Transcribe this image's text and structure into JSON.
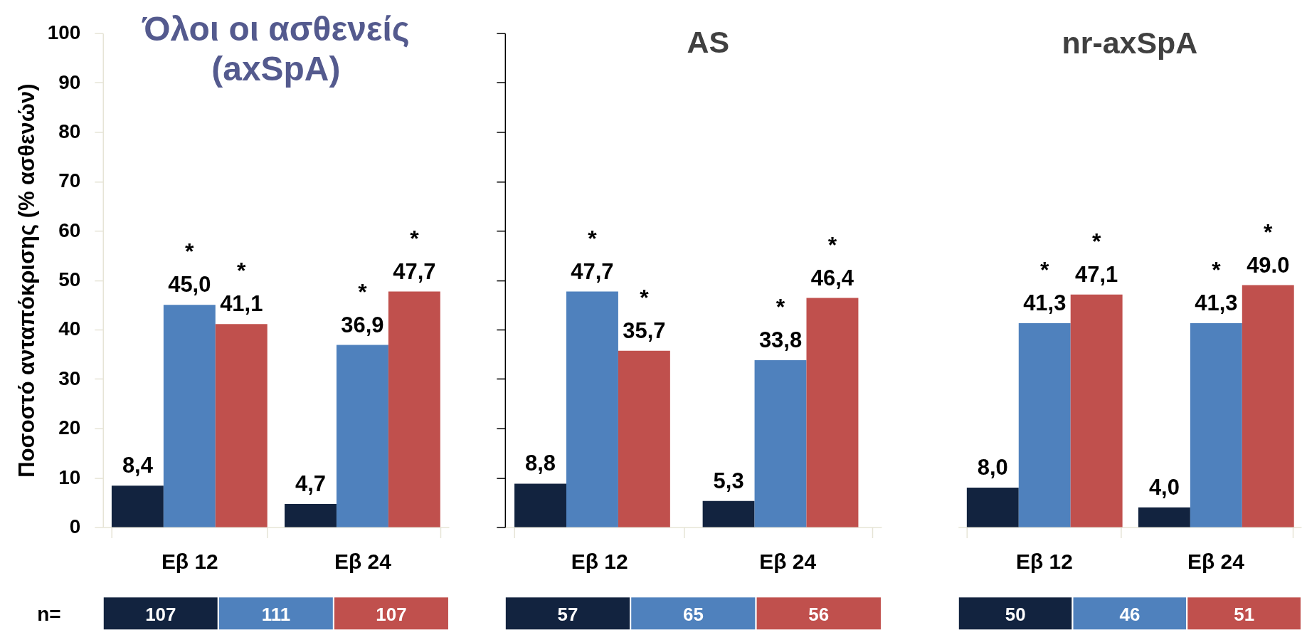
{
  "chart_data": [
    {
      "type": "bar",
      "title": "Όλοι οι ασθενείς (axSpA)",
      "ylabel": "Ποσοστό ανταπόκρισης (% ασθενών)",
      "categories": [
        "Εβ 12",
        "Εβ 24"
      ],
      "series": [
        {
          "color": "#12233f",
          "values": [
            8.4,
            4.7
          ],
          "value_labels": [
            "8,4",
            "4,7"
          ]
        },
        {
          "color": "#4f81bd",
          "values": [
            45.0,
            36.9
          ],
          "value_labels": [
            "45,0",
            "36,9"
          ]
        },
        {
          "color": "#c0504d",
          "values": [
            41.1,
            47.7
          ],
          "value_labels": [
            "41,1",
            "47,7"
          ]
        }
      ],
      "ylim": [
        0,
        100
      ],
      "yticks": [
        0,
        10,
        20,
        30,
        40,
        50,
        60,
        70,
        80,
        90,
        100
      ],
      "annotations": [
        "n=",
        "107",
        "111",
        "107",
        {
          "text": "*",
          "x": "Εβ 12",
          "y": 45.0
        },
        "*",
        {
          "text": "*",
          "x": "Εβ 24",
          "y": 36.9
        },
        "*"
      ]
    },
    {
      "type": "bar",
      "title": "AS",
      "categories": [
        "Εβ 12",
        "Εβ 24"
      ],
      "series": [
        {
          "color": "#12233f",
          "values": [
            8.8,
            5.3
          ],
          "value_labels": [
            "8,8",
            "5,3"
          ]
        },
        {
          "color": "#4f81bd",
          "values": [
            47.7,
            33.8
          ],
          "value_labels": [
            "47,7",
            "33,8"
          ]
        },
        {
          "color": "#c0504d",
          "values": [
            35.7,
            46.4
          ],
          "value_labels": [
            "35,7",
            "46,4"
          ]
        }
      ],
      "ylim": [
        0,
        100
      ],
      "yticks": [
        {
          "value": 0,
          "label": null
        },
        {
          "value": 10,
          "label": null
        },
        {
          "value": 20,
          "label": null
        },
        {
          "value": 30,
          "label": null
        },
        {
          "value": 40,
          "label": null
        },
        {
          "value": 50,
          "label": null
        },
        {
          "value": 60,
          "label": null
        },
        {
          "value": 70,
          "label": null
        },
        {
          "value": 80,
          "label": null
        },
        {
          "value": 90,
          "label": null
        },
        {
          "value": 100,
          "label": null
        }
      ],
      "tick_labels": "x",
      "annotations": [
        "57",
        "65",
        "56",
        {
          "text": "*",
          "x": "Εβ 12",
          "y": 47.7
        },
        "*",
        {
          "text": "*",
          "x": "Εβ 24",
          "y": 33.8
        },
        "*"
      ]
    },
    {
      "type": "bar",
      "title": "nr-axSpA",
      "categories": [
        "Εβ 12",
        "Εβ 24"
      ],
      "series": [
        {
          "color": "#12233f",
          "values": [
            8.0,
            4.0
          ],
          "value_labels": [
            "8,0",
            "4,0"
          ]
        },
        {
          "color": "#4f81bd",
          "values": [
            41.3,
            41.3
          ],
          "value_labels": [
            "41,3",
            "41,3"
          ]
        },
        {
          "color": "#c0504d",
          "values": [
            47.1,
            49.0
          ],
          "value_labels": [
            "47,1",
            "49.0"
          ]
        }
      ],
      "ylim": [
        0,
        100
      ],
      "tick_labels": "x",
      "annotations": [
        "50",
        "46",
        "51",
        {
          "text": "*",
          "x": "Εβ 12",
          "y": 41.3
        },
        "*",
        {
          "text": "*",
          "x": "Εβ 24",
          "y": 41.3
        },
        "*"
      ]
    }
  ]
}
